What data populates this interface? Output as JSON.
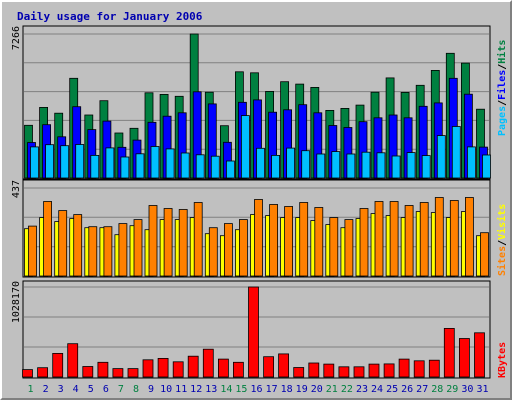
{
  "title": "Daily usage for January 2006",
  "colors": {
    "title": "#0000b0",
    "hits": "#008040",
    "files": "#0000ff",
    "pages": "#00c0ff",
    "visits": "#ffff00",
    "sites": "#ff8000",
    "kbytes": "#ff0000",
    "weekend_day": "#008040",
    "weekday": "#0000b0",
    "panel": "#c0c0c0",
    "grid": "#808080"
  },
  "chart_data": [
    {
      "type": "bar",
      "panel": "hits_files_pages",
      "categories": [
        "1",
        "2",
        "3",
        "4",
        "5",
        "6",
        "7",
        "8",
        "9",
        "10",
        "11",
        "12",
        "13",
        "14",
        "15",
        "16",
        "17",
        "18",
        "19",
        "20",
        "21",
        "22",
        "23",
        "24",
        "25",
        "26",
        "27",
        "28",
        "29",
        "30",
        "31"
      ],
      "ytick": "7266",
      "ymax": 7266,
      "series": [
        {
          "name": "Hits",
          "values": [
            2660,
            3560,
            3270,
            5030,
            3180,
            3900,
            2270,
            2510,
            4300,
            4220,
            4120,
            7266,
            4330,
            2640,
            5360,
            5310,
            4370,
            4860,
            4740,
            4570,
            3410,
            3510,
            3680,
            4330,
            5050,
            4320,
            4680,
            5430,
            6290,
            5800,
            3470
          ]
        },
        {
          "name": "Files",
          "values": [
            1790,
            2690,
            2080,
            3600,
            2440,
            2870,
            1550,
            1910,
            2810,
            3120,
            3290,
            4350,
            3740,
            1800,
            3820,
            3940,
            3320,
            3440,
            3700,
            3290,
            2650,
            2550,
            2840,
            3040,
            3180,
            3040,
            3620,
            3790,
            5030,
            4230,
            1560
          ]
        },
        {
          "name": "Pages",
          "values": [
            1570,
            1680,
            1630,
            1690,
            1140,
            1520,
            1060,
            1220,
            1590,
            1470,
            1260,
            1170,
            1100,
            860,
            3150,
            1500,
            1140,
            1510,
            1380,
            1210,
            1330,
            1210,
            1300,
            1270,
            1110,
            1280,
            1130,
            2140,
            2600,
            1570,
            1160
          ]
        }
      ]
    },
    {
      "type": "bar",
      "panel": "visits_sites",
      "categories": [
        "1",
        "2",
        "3",
        "4",
        "5",
        "6",
        "7",
        "8",
        "9",
        "10",
        "11",
        "12",
        "13",
        "14",
        "15",
        "16",
        "17",
        "18",
        "19",
        "20",
        "21",
        "22",
        "23",
        "24",
        "25",
        "26",
        "27",
        "28",
        "29",
        "30",
        "31"
      ],
      "ytick": "437",
      "ymax": 437,
      "series": [
        {
          "name": "Visits",
          "values": [
            235,
            290,
            270,
            285,
            240,
            240,
            205,
            250,
            230,
            280,
            280,
            290,
            210,
            200,
            230,
            305,
            300,
            290,
            290,
            275,
            255,
            240,
            285,
            310,
            300,
            290,
            320,
            315,
            290,
            320,
            200
          ]
        },
        {
          "name": "Sites",
          "values": [
            248,
            370,
            325,
            305,
            245,
            245,
            260,
            280,
            350,
            335,
            330,
            365,
            240,
            260,
            280,
            380,
            355,
            345,
            365,
            340,
            290,
            280,
            335,
            370,
            370,
            350,
            365,
            390,
            375,
            390,
            215
          ]
        }
      ]
    },
    {
      "type": "bar",
      "panel": "kbytes",
      "categories": [
        "1",
        "2",
        "3",
        "4",
        "5",
        "6",
        "7",
        "8",
        "9",
        "10",
        "11",
        "12",
        "13",
        "14",
        "15",
        "16",
        "17",
        "18",
        "19",
        "20",
        "21",
        "22",
        "23",
        "24",
        "25",
        "26",
        "27",
        "28",
        "29",
        "30",
        "31"
      ],
      "ytick": "1028170",
      "ymax": 1028170,
      "series": [
        {
          "name": "KBytes",
          "values": [
            85000,
            106000,
            270000,
            380000,
            120000,
            168000,
            96000,
            96000,
            197000,
            213000,
            174000,
            238000,
            318000,
            205000,
            168000,
            1028170,
            232000,
            264000,
            109000,
            160000,
            147000,
            116000,
            116000,
            147000,
            150000,
            205000,
            185000,
            192000,
            555000,
            440000,
            505000
          ]
        }
      ]
    }
  ],
  "legend": {
    "top": [
      "Pages",
      "Files",
      "Hits"
    ],
    "separator": "/",
    "middle": [
      "Sites",
      "Visits"
    ],
    "bottom": "KBytes"
  },
  "weekend_days": [
    1,
    7,
    8,
    14,
    15,
    21,
    22,
    28,
    29
  ]
}
